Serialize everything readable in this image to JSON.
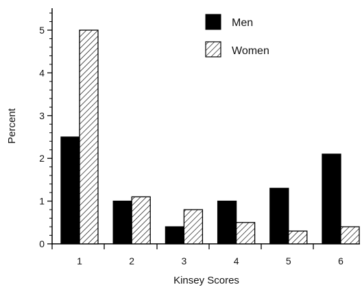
{
  "chart_data": {
    "type": "bar",
    "xlabel": "Kinsey Scores",
    "ylabel": "Percent",
    "categories": [
      "1",
      "2",
      "3",
      "4",
      "5",
      "6"
    ],
    "ylim": [
      0,
      5.5
    ],
    "yticks": [
      "0",
      "1",
      "2",
      "3",
      "4",
      "5"
    ],
    "series": [
      {
        "name": "Men",
        "values": [
          2.5,
          1.0,
          0.4,
          1.0,
          1.3,
          2.1
        ],
        "fill": "solid",
        "color": "#000000"
      },
      {
        "name": "Women",
        "values": [
          5.0,
          1.1,
          0.8,
          0.5,
          0.3,
          0.4
        ],
        "fill": "hatched",
        "color": "#000000"
      }
    ],
    "legend_position": "top-right",
    "grid": false
  }
}
